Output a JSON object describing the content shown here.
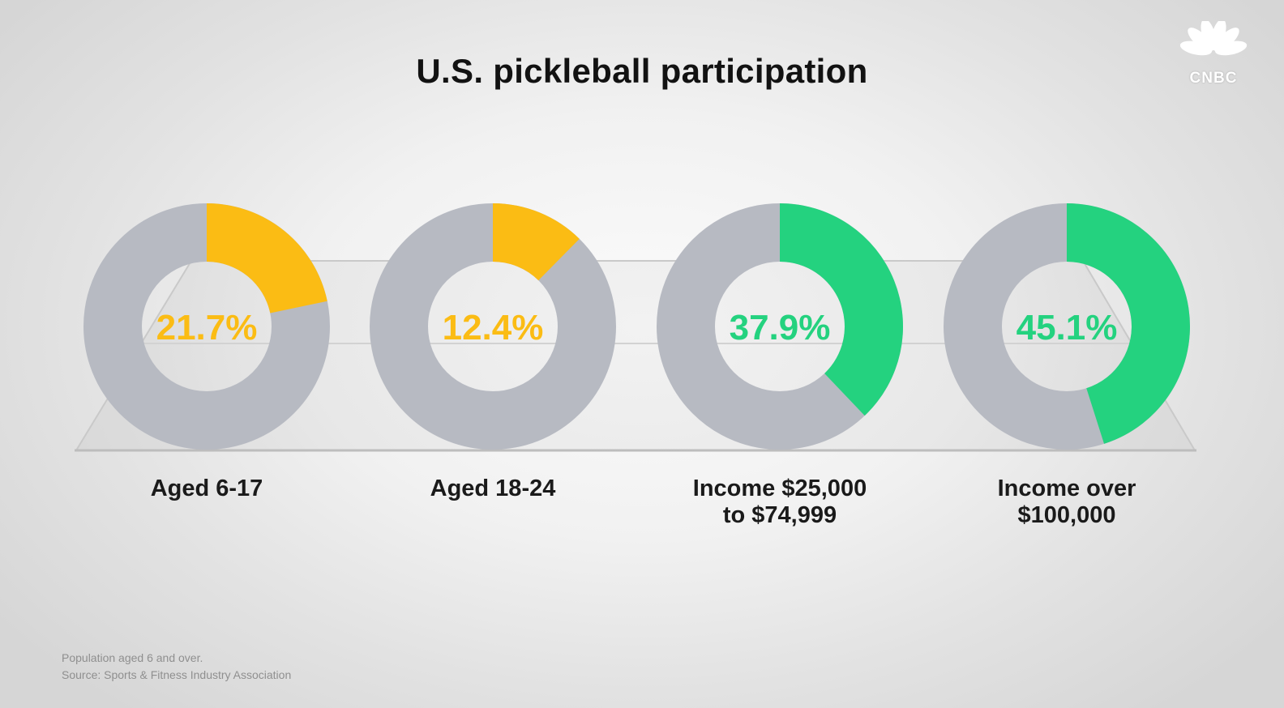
{
  "title": "U.S. pickleball participation",
  "brand": {
    "name": "CNBC",
    "peacock_colors": [
      "#ffffff",
      "#ffffff",
      "#ffffff",
      "#ffffff",
      "#ffffff",
      "#ffffff"
    ]
  },
  "colors": {
    "remainder": "#b7bac2",
    "age_accent": "#fbbc14",
    "income_accent": "#24d27f"
  },
  "chart_data": {
    "type": "pie",
    "variant": "donut",
    "unit": "%",
    "items": [
      {
        "category": "Aged 6-17",
        "value": 21.7,
        "label": "21.7%",
        "color": "#fbbc14"
      },
      {
        "category": "Aged 18-24",
        "value": 12.4,
        "label": "12.4%",
        "color": "#fbbc14"
      },
      {
        "category": "Income $25,000\nto $74,999",
        "value": 37.9,
        "label": "37.9%",
        "color": "#24d27f"
      },
      {
        "category": "Income over\n$100,000",
        "value": 45.1,
        "label": "45.1%",
        "color": "#24d27f"
      }
    ]
  },
  "footnotes": {
    "line1": "Population aged 6 and over.",
    "line2": "Source: Sports & Fitness Industry Association"
  }
}
